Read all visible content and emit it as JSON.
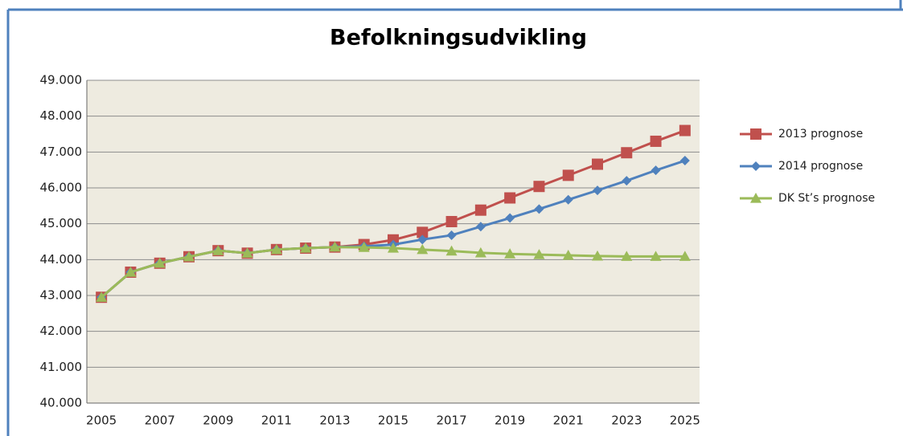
{
  "chart_data": {
    "type": "line",
    "title": "Befolkningsudvikling",
    "categories": [
      "2005",
      null,
      "2007",
      null,
      "2009",
      null,
      "2011",
      null,
      "2013",
      null,
      "2015",
      null,
      "2017",
      null,
      "2019",
      null,
      "2021",
      null,
      "2023",
      null,
      "2025"
    ],
    "series": [
      {
        "name": "2013 prognose",
        "color": "#c0504d",
        "marker": "square",
        "values": [
          42950,
          43650,
          43900,
          44080,
          44250,
          44180,
          44280,
          44320,
          44350,
          44420,
          44550,
          44760,
          45060,
          45380,
          45720,
          46040,
          46350,
          46660,
          46980,
          47300,
          47600
        ]
      },
      {
        "name": "2014 prognose",
        "color": "#4f81bd",
        "marker": "diamond",
        "values": [
          42950,
          43650,
          43900,
          44080,
          44250,
          44180,
          44280,
          44320,
          44350,
          44370,
          44420,
          44560,
          44680,
          44920,
          45160,
          45410,
          45670,
          45930,
          46200,
          46490,
          46760
        ]
      },
      {
        "name": "DK St’s prognose",
        "color": "#9bbb59",
        "marker": "triangle",
        "values": [
          42950,
          43650,
          43900,
          44080,
          44250,
          44180,
          44280,
          44320,
          44350,
          44340,
          44320,
          44280,
          44240,
          44190,
          44160,
          44140,
          44120,
          44100,
          44090,
          44090,
          44090
        ]
      }
    ],
    "ylim": [
      40000,
      49000
    ],
    "yticks": [
      {
        "value": 40000,
        "label": "40.000"
      },
      {
        "value": 41000,
        "label": "41.000"
      },
      {
        "value": 42000,
        "label": "42.000"
      },
      {
        "value": 43000,
        "label": "43.000"
      },
      {
        "value": 44000,
        "label": "44.000"
      },
      {
        "value": 45000,
        "label": "45.000"
      },
      {
        "value": 46000,
        "label": "46.000"
      },
      {
        "value": 47000,
        "label": "47.000"
      },
      {
        "value": 48000,
        "label": "48.000"
      },
      {
        "value": 49000,
        "label": "49.000"
      }
    ],
    "grid": true,
    "legend": "right"
  }
}
